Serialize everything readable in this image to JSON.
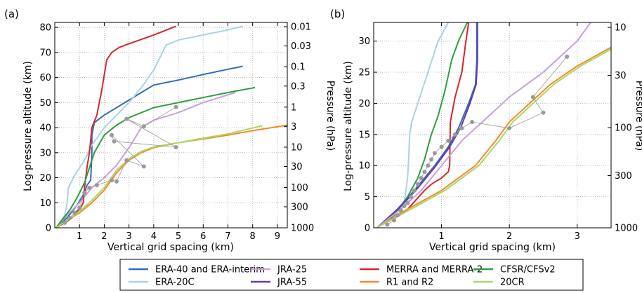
{
  "colors": {
    "era40_interim": "#2f6db5",
    "era20c": "#a9d2e3",
    "jra25": "#c9a0dc",
    "jra55": "#6a3aaa",
    "merra": "#d7262b",
    "r1r2": "#f28c28",
    "cfsr": "#2ca03c",
    "cr20": "#a6d96a",
    "markers": "#999999",
    "grid": "#bbbbbb"
  },
  "legend": {
    "entries": [
      {
        "key": "era40_interim",
        "label": "ERA-40 and ERA-interim"
      },
      {
        "key": "jra25",
        "label": "JRA-25"
      },
      {
        "key": "merra",
        "label": "MERRA and MERRA-2"
      },
      {
        "key": "cfsr",
        "label": "CFSR/CFSv2"
      },
      {
        "key": "era20c",
        "label": "ERA-20C"
      },
      {
        "key": "jra55",
        "label": "JRA-55"
      },
      {
        "key": "r1r2",
        "label": "R1 and R2"
      },
      {
        "key": "cr20",
        "label": "20CR"
      }
    ]
  },
  "chart_data": [
    {
      "panel": "(a)",
      "type": "line",
      "xlabel": "Vertical grid spacing (km)",
      "ylabel": "Log-pressure altitude (km)",
      "y2label": "Pressure (hPa)",
      "xlim": [
        0,
        9.4
      ],
      "ylim": [
        0,
        82
      ],
      "xticks": [
        1,
        2,
        3,
        4,
        5,
        6,
        7,
        8,
        9
      ],
      "yticks": [
        0,
        10,
        20,
        30,
        40,
        50,
        60,
        70,
        80
      ],
      "pressure_ticks": [
        {
          "label": "0.01",
          "alt": 80.3
        },
        {
          "label": "0.03",
          "alt": 72.6
        },
        {
          "label": "0.1",
          "alt": 64.3
        },
        {
          "label": "0.3",
          "alt": 56.6
        },
        {
          "label": "1",
          "alt": 48.2
        },
        {
          "label": "3",
          "alt": 40.5
        },
        {
          "label": "10",
          "alt": 32.2
        },
        {
          "label": "30",
          "alt": 24.5
        },
        {
          "label": "100",
          "alt": 16.1
        },
        {
          "label": "300",
          "alt": 8.4
        },
        {
          "label": "1000",
          "alt": 0
        }
      ],
      "grid": true,
      "series": [
        {
          "key": "era40_interim",
          "points": [
            [
              0.05,
              0
            ],
            [
              0.5,
              4
            ],
            [
              0.9,
              9
            ],
            [
              1.2,
              14
            ],
            [
              1.3,
              17
            ],
            [
              1.45,
              19
            ],
            [
              1.48,
              25
            ],
            [
              1.5,
              30
            ],
            [
              1.5,
              37
            ],
            [
              1.6,
              42
            ],
            [
              2,
              45
            ],
            [
              2.5,
              48
            ],
            [
              3,
              51
            ],
            [
              3.5,
              54
            ],
            [
              4,
              57
            ],
            [
              5,
              59
            ],
            [
              6,
              61.2
            ],
            [
              7,
              63.3
            ],
            [
              7.6,
              64.5
            ]
          ]
        },
        {
          "key": "era20c",
          "points": [
            [
              0.05,
              0
            ],
            [
              0.4,
              5
            ],
            [
              0.5,
              10
            ],
            [
              0.55,
              16
            ],
            [
              0.8,
              21
            ],
            [
              1.2,
              27
            ],
            [
              1.5,
              33
            ],
            [
              2,
              40
            ],
            [
              2.5,
              45
            ],
            [
              3,
              50
            ],
            [
              3.5,
              56
            ],
            [
              4,
              63
            ],
            [
              4.5,
              73
            ],
            [
              5,
              75
            ],
            [
              6,
              77
            ],
            [
              7,
              79
            ],
            [
              7.6,
              80.5
            ]
          ]
        },
        {
          "key": "jra25",
          "points": [
            [
              0.05,
              0
            ],
            [
              0.5,
              5
            ],
            [
              1,
              10
            ],
            [
              1.5,
              16
            ],
            [
              2,
              20
            ],
            [
              2.5,
              25
            ],
            [
              3,
              32
            ],
            [
              3.5,
              40
            ],
            [
              4,
              43
            ],
            [
              5,
              46
            ],
            [
              6,
              50
            ],
            [
              7.3,
              54
            ]
          ]
        },
        {
          "key": "merra",
          "points": [
            [
              0.05,
              0
            ],
            [
              0.4,
              2
            ],
            [
              0.7,
              4
            ],
            [
              0.85,
              6
            ],
            [
              1.05,
              8
            ],
            [
              1.1,
              9
            ],
            [
              1.15,
              10
            ],
            [
              1.2,
              16
            ],
            [
              1.3,
              24
            ],
            [
              1.4,
              30
            ],
            [
              1.5,
              40
            ],
            [
              1.7,
              45
            ],
            [
              1.9,
              55
            ],
            [
              2.1,
              67
            ],
            [
              2.3,
              70
            ],
            [
              2.6,
              72
            ],
            [
              3,
              73.5
            ],
            [
              4,
              77
            ],
            [
              4.9,
              80.5
            ]
          ]
        },
        {
          "key": "cfsr",
          "points": [
            [
              0.05,
              0
            ],
            [
              0.6,
              7
            ],
            [
              0.9,
              12
            ],
            [
              1.2,
              18
            ],
            [
              1.4,
              24
            ],
            [
              1.6,
              30
            ],
            [
              2,
              37
            ],
            [
              2.5,
              41
            ],
            [
              3,
              44
            ],
            [
              4,
              48
            ],
            [
              5,
              50
            ],
            [
              6,
              52
            ],
            [
              7,
              54
            ],
            [
              8.1,
              56
            ]
          ]
        },
        {
          "key": "r1r2",
          "points": [
            [
              0.05,
              0
            ],
            [
              0.5,
              3
            ],
            [
              1,
              6
            ],
            [
              1.5,
              10
            ],
            [
              2,
              15
            ],
            [
              2.5,
              22
            ],
            [
              3,
              27
            ],
            [
              3.5,
              30
            ],
            [
              4,
              32
            ],
            [
              5,
              34
            ],
            [
              6,
              35.5
            ],
            [
              7,
              37
            ],
            [
              8,
              38.8
            ],
            [
              9.4,
              41
            ]
          ]
        },
        {
          "key": "cr20",
          "points": [
            [
              0.05,
              0
            ],
            [
              0.5,
              3
            ],
            [
              1,
              6.5
            ],
            [
              1.5,
              11
            ],
            [
              2,
              16
            ],
            [
              2.5,
              23
            ],
            [
              3,
              27.5
            ],
            [
              3.5,
              30.5
            ],
            [
              4,
              32.3
            ],
            [
              5,
              34
            ],
            [
              6,
              35.8
            ],
            [
              7,
              37.5
            ],
            [
              8.4,
              40.8
            ]
          ]
        }
      ],
      "markers": [
        [
          0.4,
          2
        ],
        [
          0.6,
          4
        ],
        [
          0.8,
          6
        ],
        [
          1.0,
          8
        ],
        [
          1.2,
          14
        ],
        [
          1.4,
          16
        ],
        [
          1.7,
          17
        ],
        [
          2.3,
          19
        ],
        [
          2.5,
          18.5
        ],
        [
          2.9,
          27
        ],
        [
          3.6,
          24.5
        ],
        [
          2.3,
          37
        ],
        [
          2.4,
          34.5
        ],
        [
          4.9,
          32.2
        ],
        [
          2.9,
          43.5
        ],
        [
          3.6,
          40.5
        ],
        [
          4.9,
          48.2
        ]
      ]
    },
    {
      "panel": "(b)",
      "type": "line",
      "xlabel": "Vertical grid spacing (km)",
      "ylabel": "Log-pressure altitude (km)",
      "y2label": "Pressure (hPa)",
      "xlim": [
        0,
        3.5
      ],
      "ylim": [
        0,
        33
      ],
      "xticks": [
        1,
        2,
        3
      ],
      "yticks": [
        0,
        5,
        10,
        15,
        20,
        25,
        30
      ],
      "pressure_ticks": [
        {
          "label": "10",
          "alt": 32.2
        },
        {
          "label": "30",
          "alt": 24.5
        },
        {
          "label": "100",
          "alt": 16.1
        },
        {
          "label": "300",
          "alt": 8.4
        },
        {
          "label": "1000",
          "alt": 0
        }
      ],
      "grid": true,
      "series": [
        {
          "key": "era20c",
          "points": [
            [
              0.05,
              0
            ],
            [
              0.3,
              2
            ],
            [
              0.45,
              4
            ],
            [
              0.5,
              8
            ],
            [
              0.52,
              12
            ],
            [
              0.53,
              15
            ],
            [
              0.56,
              17
            ],
            [
              0.65,
              20
            ],
            [
              0.8,
              25
            ],
            [
              0.95,
              30
            ],
            [
              1.1,
              33
            ]
          ]
        },
        {
          "key": "cfsr",
          "points": [
            [
              0.05,
              0
            ],
            [
              0.3,
              2
            ],
            [
              0.5,
              5
            ],
            [
              0.65,
              8
            ],
            [
              0.75,
              11
            ],
            [
              0.85,
              15
            ],
            [
              0.95,
              18
            ],
            [
              1.05,
              22
            ],
            [
              1.15,
              27
            ],
            [
              1.25,
              30
            ],
            [
              1.38,
              33
            ]
          ]
        },
        {
          "key": "merra",
          "points": [
            [
              0.05,
              0
            ],
            [
              0.2,
              1
            ],
            [
              0.35,
              2
            ],
            [
              0.5,
              3
            ],
            [
              0.75,
              6
            ],
            [
              0.85,
              7
            ],
            [
              1.0,
              8
            ],
            [
              1.1,
              9
            ],
            [
              1.12,
              10
            ],
            [
              1.13,
              17
            ],
            [
              1.2,
              21
            ],
            [
              1.3,
              25
            ],
            [
              1.36,
              30
            ],
            [
              1.4,
              33
            ]
          ]
        },
        {
          "key": "era40_interim",
          "points": [
            [
              0.05,
              0
            ],
            [
              0.35,
              3
            ],
            [
              0.6,
              6
            ],
            [
              0.9,
              10
            ],
            [
              1.1,
              13
            ],
            [
              1.25,
              16
            ],
            [
              1.4,
              20
            ],
            [
              1.5,
              23
            ],
            [
              1.52,
              27
            ],
            [
              1.52,
              33
            ]
          ]
        },
        {
          "key": "jra55",
          "points": [
            [
              0.05,
              0
            ],
            [
              0.36,
              3
            ],
            [
              0.62,
              6
            ],
            [
              0.92,
              10
            ],
            [
              1.12,
              13
            ],
            [
              1.28,
              16
            ],
            [
              1.42,
              20
            ],
            [
              1.51,
              23
            ],
            [
              1.53,
              27
            ],
            [
              1.53,
              33
            ]
          ]
        },
        {
          "key": "jra25",
          "points": [
            [
              0.05,
              0
            ],
            [
              0.4,
              3
            ],
            [
              0.7,
              6
            ],
            [
              1.0,
              10
            ],
            [
              1.3,
              14
            ],
            [
              1.6,
              17
            ],
            [
              2.0,
              21
            ],
            [
              2.5,
              25
            ],
            [
              3.0,
              30
            ],
            [
              3.2,
              33
            ]
          ]
        },
        {
          "key": "r1r2",
          "points": [
            [
              0.05,
              0
            ],
            [
              0.5,
              3
            ],
            [
              1,
              6
            ],
            [
              1.5,
              10
            ],
            [
              1.8,
              14
            ],
            [
              2,
              17
            ],
            [
              2.3,
              20
            ],
            [
              2.6,
              23
            ],
            [
              3.0,
              26
            ],
            [
              3.5,
              29
            ]
          ]
        },
        {
          "key": "cr20",
          "points": [
            [
              0.05,
              0
            ],
            [
              0.55,
              3
            ],
            [
              1.05,
              6
            ],
            [
              1.55,
              10
            ],
            [
              1.85,
              14
            ],
            [
              2.05,
              17
            ],
            [
              2.35,
              20
            ],
            [
              2.65,
              23
            ],
            [
              3.05,
              26
            ],
            [
              3.5,
              28.7
            ]
          ]
        }
      ],
      "markers": [
        [
          0.2,
          0.5
        ],
        [
          0.3,
          1.2
        ],
        [
          0.35,
          2
        ],
        [
          0.4,
          2.8
        ],
        [
          0.45,
          3.5
        ],
        [
          0.5,
          4
        ],
        [
          0.55,
          5
        ],
        [
          0.6,
          6
        ],
        [
          0.65,
          7
        ],
        [
          0.7,
          8
        ],
        [
          0.75,
          9
        ],
        [
          0.8,
          10
        ],
        [
          0.85,
          11
        ],
        [
          0.9,
          12
        ],
        [
          1.0,
          13
        ],
        [
          1.1,
          14
        ],
        [
          1.2,
          15
        ],
        [
          1.3,
          16
        ],
        [
          1.45,
          17
        ],
        [
          2.0,
          16
        ],
        [
          2.5,
          18.5
        ],
        [
          2.35,
          21
        ],
        [
          2.85,
          27.5
        ]
      ]
    }
  ]
}
